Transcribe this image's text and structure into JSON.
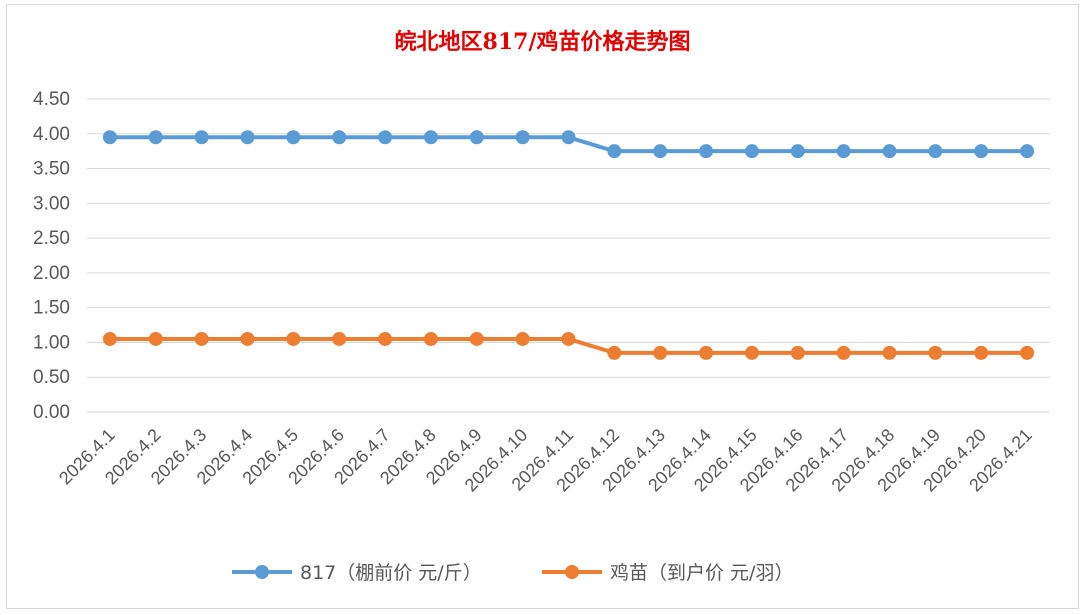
{
  "chart_data": {
    "type": "line",
    "title": "皖北地区817/鸡苗价格走势图",
    "xlabel": "",
    "ylabel": "",
    "categories": [
      "2026.4.1",
      "2026.4.2",
      "2026.4.3",
      "2026.4.4",
      "2026.4.5",
      "2026.4.6",
      "2026.4.7",
      "2026.4.8",
      "2026.4.9",
      "2026.4.10",
      "2026.4.11",
      "2026.4.12",
      "2026.4.13",
      "2026.4.14",
      "2026.4.15",
      "2026.4.16",
      "2026.4.17",
      "2026.4.18",
      "2026.4.19",
      "2026.4.20",
      "2026.4.21"
    ],
    "ylim": [
      0,
      4.5
    ],
    "yticks": [
      "0.00",
      "0.50",
      "1.00",
      "1.50",
      "2.00",
      "2.50",
      "3.00",
      "3.50",
      "4.00",
      "4.50"
    ],
    "grid": true,
    "legend_position": "bottom",
    "series": [
      {
        "name": "817（棚前价 元/斤）",
        "color": "#5b9bd5",
        "values": [
          3.95,
          3.95,
          3.95,
          3.95,
          3.95,
          3.95,
          3.95,
          3.95,
          3.95,
          3.95,
          3.95,
          3.75,
          3.75,
          3.75,
          3.75,
          3.75,
          3.75,
          3.75,
          3.75,
          3.75,
          3.75
        ]
      },
      {
        "name": "鸡苗（到户价 元/羽）",
        "color": "#ed7d31",
        "values": [
          1.05,
          1.05,
          1.05,
          1.05,
          1.05,
          1.05,
          1.05,
          1.05,
          1.05,
          1.05,
          1.05,
          0.85,
          0.85,
          0.85,
          0.85,
          0.85,
          0.85,
          0.85,
          0.85,
          0.85,
          0.85
        ]
      }
    ]
  }
}
